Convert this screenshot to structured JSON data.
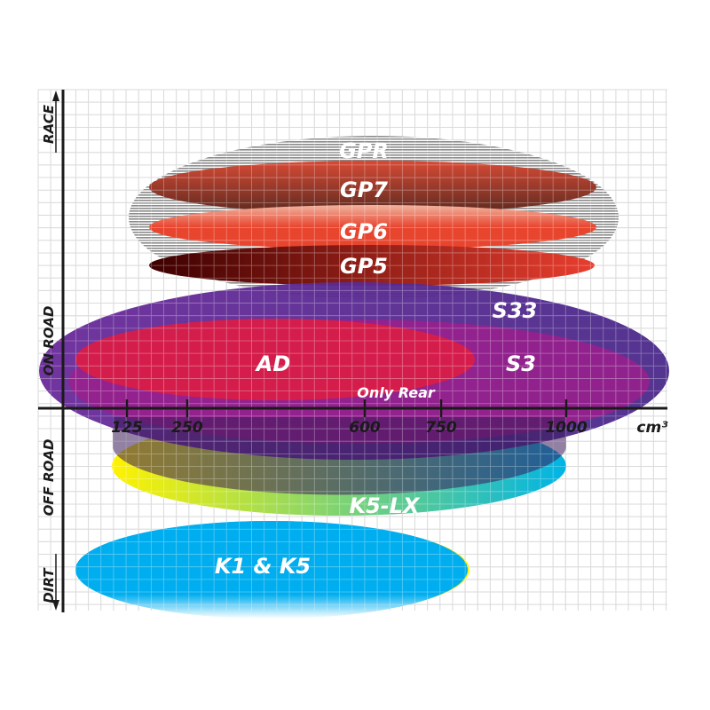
{
  "y_axis": {
    "categories": [
      "RACE",
      "ON ROAD",
      "OFF ROAD",
      "DIRT"
    ]
  },
  "x_axis": {
    "unit": "cm³",
    "ticks": [
      "125",
      "250",
      "600",
      "750",
      "1000"
    ]
  },
  "products": [
    {
      "label": "GPR",
      "fill": "striped gray",
      "colors": [
        "#8a8a8a",
        "#ffffff"
      ]
    },
    {
      "label": "GP7",
      "colors": [
        "#d84a35",
        "#5a2a20"
      ]
    },
    {
      "label": "GP6",
      "colors": [
        "#f0a08a",
        "#e8452e"
      ]
    },
    {
      "label": "GP5",
      "colors": [
        "#3d0000",
        "#e83e2e"
      ]
    },
    {
      "label": "S33",
      "colors": [
        "#6a2a9a",
        "#4a2a8a"
      ]
    },
    {
      "label": "S3",
      "colors": [
        "#9b1f8c"
      ]
    },
    {
      "label": "AD",
      "colors": [
        "#d81e48"
      ]
    },
    {
      "label": "Only Rear"
    },
    {
      "label": "K5-LX",
      "colors": [
        "#fff200",
        "#00b4e6"
      ]
    },
    {
      "label": "K1 & K5",
      "colors": [
        "#00aeef",
        "#ffffff"
      ]
    }
  ],
  "colors": {
    "grid": "#cccccc",
    "axis": "#1a1a1a"
  }
}
